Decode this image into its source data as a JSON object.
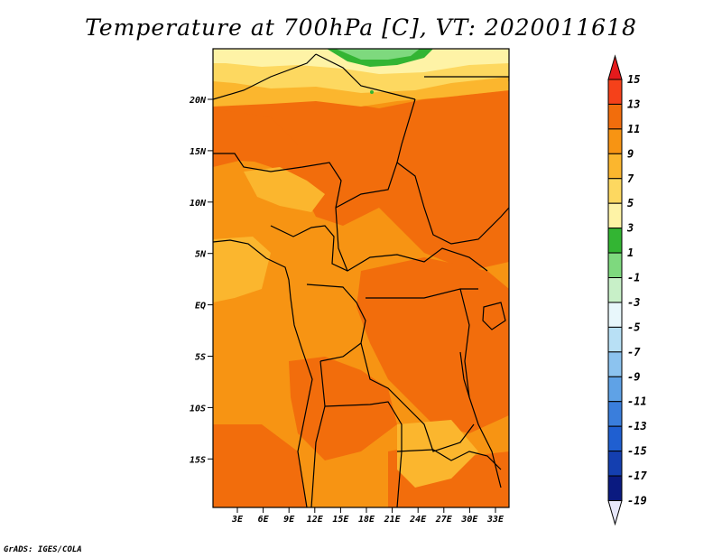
{
  "title": "Temperature at 700hPa [C], VT: 2020011618",
  "credit": "GrADS: IGES/COLA",
  "map": {
    "lat_labels": [
      "20N",
      "15N",
      "10N",
      "5N",
      "EQ",
      "5S",
      "10S",
      "15S"
    ],
    "lon_labels": [
      "3E",
      "6E",
      "9E",
      "12E",
      "15E",
      "18E",
      "21E",
      "24E",
      "27E",
      "30E",
      "33E"
    ]
  },
  "colorbar": {
    "labels": [
      "15",
      "13",
      "11",
      "9",
      "7",
      "5",
      "3",
      "1",
      "-1",
      "-3",
      "-5",
      "-7",
      "-9",
      "-11",
      "-13",
      "-15",
      "-17",
      "-19"
    ],
    "colors": [
      "#e41a1c",
      "#f5411a",
      "#f26d0c",
      "#f79413",
      "#fbb62e",
      "#fdd860",
      "#fef3a6",
      "#33b533",
      "#7ed97e",
      "#c8f0c8",
      "#e8f7fb",
      "#b8e0f5",
      "#8cc3ef",
      "#5fa2e6",
      "#3a7edc",
      "#1f5fd1",
      "#143fb0",
      "#0a1a80",
      "#e6e6fa"
    ]
  },
  "colors": {
    "warm_11_13": "#f26d0c",
    "warm_9_11": "#f79413",
    "warm_7_9": "#fbb62e",
    "warm_5_7": "#fdd860",
    "warm_3_5": "#fef3a6",
    "green_1_3": "#33b533",
    "green_m1_1": "#7ed97e"
  }
}
